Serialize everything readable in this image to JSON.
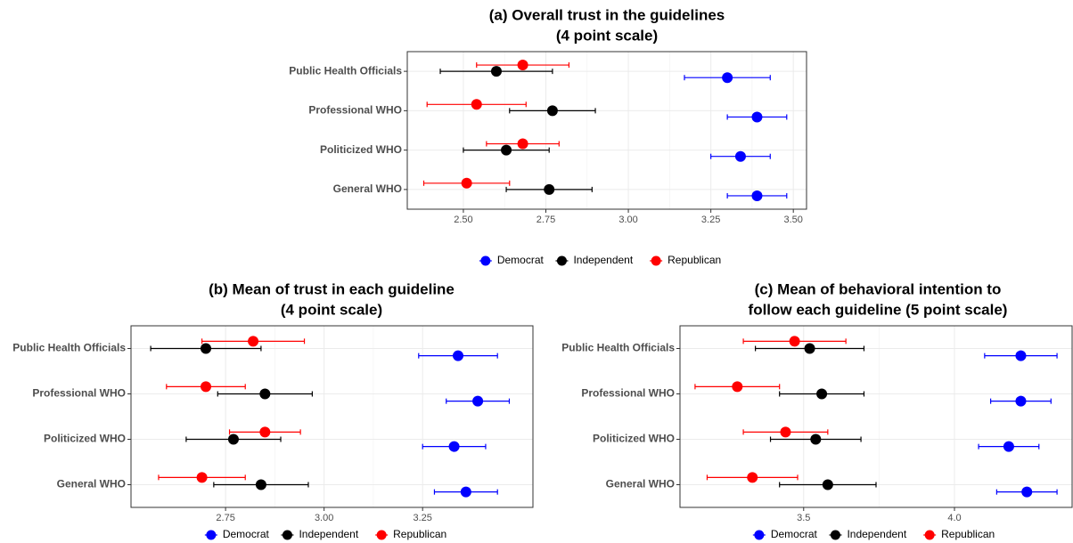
{
  "chart_data": [
    {
      "type": "dotplot-errorbar",
      "title": [
        "(a) Overall trust in the guidelines",
        "(4 point scale)"
      ],
      "categories": [
        "Public Health Officials",
        "Professional WHO",
        "Politicized WHO",
        "General WHO"
      ],
      "series": [
        {
          "name": "Democrat",
          "color": "#0000ff",
          "values": [
            3.3,
            3.39,
            3.34,
            3.39
          ],
          "errors": [
            0.13,
            0.09,
            0.09,
            0.09
          ]
        },
        {
          "name": "Independent",
          "color": "#000000",
          "values": [
            2.6,
            2.77,
            2.63,
            2.76
          ],
          "errors": [
            0.17,
            0.13,
            0.13,
            0.13
          ]
        },
        {
          "name": "Republican",
          "color": "#ff0000",
          "values": [
            2.68,
            2.54,
            2.68,
            2.51
          ],
          "errors": [
            0.14,
            0.15,
            0.11,
            0.13
          ]
        }
      ],
      "xlim": [
        2.33,
        3.54
      ],
      "xticks": [
        {
          "value": 2.5,
          "label": "2.50"
        },
        2.75,
        {
          "value": 3,
          "label": "3.00"
        },
        3.25,
        {
          "value": 3.5,
          "label": "3.50"
        }
      ],
      "grid": true,
      "legend": "bottom"
    },
    {
      "type": "dotplot-errorbar",
      "title": [
        "(b) Mean of trust in each guideline",
        "(4 point scale)"
      ],
      "categories": [
        "Public Health Officials",
        "Professional WHO",
        "Politicized WHO",
        "General WHO"
      ],
      "series": [
        {
          "name": "Democrat",
          "color": "#0000ff",
          "values": [
            3.34,
            3.39,
            3.33,
            3.36
          ],
          "errors": [
            0.1,
            0.08,
            0.08,
            0.08
          ]
        },
        {
          "name": "Independent",
          "color": "#000000",
          "values": [
            2.7,
            2.85,
            2.77,
            2.84
          ],
          "errors": [
            0.14,
            0.12,
            0.12,
            0.12
          ]
        },
        {
          "name": "Republican",
          "color": "#ff0000",
          "values": [
            2.82,
            2.7,
            2.85,
            2.69
          ],
          "errors": [
            0.13,
            0.1,
            0.09,
            0.11
          ]
        }
      ],
      "xlim": [
        2.51,
        3.53
      ],
      "xticks": [
        2.75,
        {
          "value": 3,
          "label": "3.00"
        },
        3.25
      ],
      "grid": true,
      "legend": "bottom"
    },
    {
      "type": "dotplot-errorbar",
      "title": [
        "(c) Mean of behavioral intention to",
        "follow each guideline (5 point scale)"
      ],
      "categories": [
        "Public Health Officials",
        "Professional WHO",
        "Politicized WHO",
        "General WHO"
      ],
      "series": [
        {
          "name": "Democrat",
          "color": "#0000ff",
          "values": [
            4.22,
            4.22,
            4.18,
            4.24
          ],
          "errors": [
            0.12,
            0.1,
            0.1,
            0.1
          ]
        },
        {
          "name": "Independent",
          "color": "#000000",
          "values": [
            3.52,
            3.56,
            3.54,
            3.58
          ],
          "errors": [
            0.18,
            0.14,
            0.15,
            0.16
          ]
        },
        {
          "name": "Republican",
          "color": "#ff0000",
          "values": [
            3.47,
            3.28,
            3.44,
            3.33
          ],
          "errors": [
            0.17,
            0.14,
            0.14,
            0.15
          ]
        }
      ],
      "xlim": [
        3.09,
        4.39
      ],
      "xticks": [
        3.5,
        {
          "value": 4,
          "label": "4.0"
        }
      ],
      "grid": true,
      "legend": "bottom"
    }
  ]
}
